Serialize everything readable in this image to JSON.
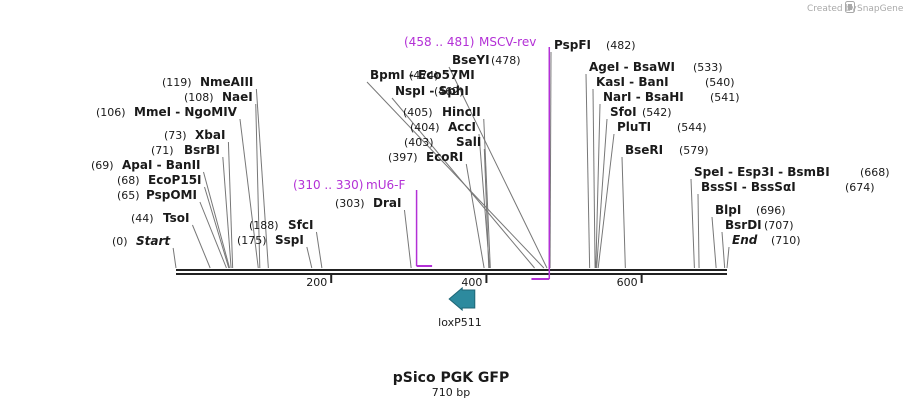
{
  "credit": {
    "prefix": "Created by",
    "brand": "SnapGene"
  },
  "map": {
    "name": "pSico PGK GFP",
    "length_label": "710 bp",
    "length_bp": 710
  },
  "colors": {
    "backbone": "#222222",
    "feature": "#b330d6",
    "loxp": "#2d8a9e",
    "leader": "#777777"
  },
  "axis": {
    "ticks": [
      {
        "value": 200,
        "label": "200"
      },
      {
        "value": 400,
        "label": "400"
      },
      {
        "value": 600,
        "label": "600"
      }
    ]
  },
  "sites": [
    {
      "pos": "(0)",
      "name": "Start",
      "italic": true,
      "bp": 0
    },
    {
      "pos": "(44)",
      "name": "TsoI",
      "bp": 44
    },
    {
      "pos": "(65)",
      "name": "PspOMI",
      "bp": 65
    },
    {
      "pos": "(68)",
      "name": "EcoP15I",
      "bp": 68
    },
    {
      "pos": "(69)",
      "name": "ApaI  - BanII",
      "bp": 69
    },
    {
      "pos": "(71)",
      "name": "BsrBI",
      "bp": 71
    },
    {
      "pos": "(73)",
      "name": "XbaI",
      "bp": 73
    },
    {
      "pos": "(106)",
      "name": "MmeI  - NgoMIV",
      "bp": 106
    },
    {
      "pos": "(108)",
      "name": "NaeI",
      "bp": 108
    },
    {
      "pos": "(119)",
      "name": "NmeAIII",
      "bp": 119
    },
    {
      "pos": "(175)",
      "name": "SspI",
      "bp": 175
    },
    {
      "pos": "(188)",
      "name": "SfcI",
      "bp": 188
    },
    {
      "pos": "(303)",
      "name": "DraI",
      "bp": 303
    },
    {
      "pos": "(397)",
      "name": "EcoRI",
      "bp": 397
    },
    {
      "pos": "(403)",
      "name": "SalI",
      "bp": 403
    },
    {
      "pos": "(404)",
      "name": "AccI",
      "bp": 404
    },
    {
      "pos": "(405)",
      "name": "HincII",
      "bp": 405
    },
    {
      "pos": "(462)",
      "name": "NspI  - SphI",
      "bp": 462
    },
    {
      "pos": "(474)",
      "name": "BpmI  - Eco57MI",
      "bp": 474
    },
    {
      "pos": "(478)",
      "name": "BseYI",
      "bp": 478
    },
    {
      "pos": "(482)",
      "name": "PspFI",
      "bp": 482
    },
    {
      "pos": "(533)",
      "name": "AgeI  - BsaWI",
      "bp": 533
    },
    {
      "pos": "(540)",
      "name": "KasI  - BanI",
      "bp": 540
    },
    {
      "pos": "(541)",
      "name": "NarI  - BsaHI",
      "bp": 541
    },
    {
      "pos": "(542)",
      "name": "SfoI",
      "bp": 542
    },
    {
      "pos": "(544)",
      "name": "PluTI",
      "bp": 544
    },
    {
      "pos": "(579)",
      "name": "BseRI",
      "bp": 579
    },
    {
      "pos": "(668)",
      "name": "SpeI  - Esp3I  - BsmBI",
      "bp": 668
    },
    {
      "pos": "(674)",
      "name": "BssSI  - BssSαI",
      "bp": 674
    },
    {
      "pos": "(696)",
      "name": "BlpI",
      "bp": 696
    },
    {
      "pos": "(707)",
      "name": "BsrDI",
      "bp": 707
    },
    {
      "pos": "(710)",
      "name": "End",
      "italic": true,
      "bp": 710
    }
  ],
  "features": [
    {
      "range": "(310 .. 330)",
      "name": "mU6-F",
      "start": 310,
      "end": 330,
      "strand": "+"
    },
    {
      "range": "(458 .. 481)",
      "name": "MSCV-rev",
      "start": 458,
      "end": 481,
      "strand": "-"
    }
  ],
  "loxp": {
    "name": "loxP511",
    "start": 352,
    "end": 385,
    "direction": "left"
  }
}
